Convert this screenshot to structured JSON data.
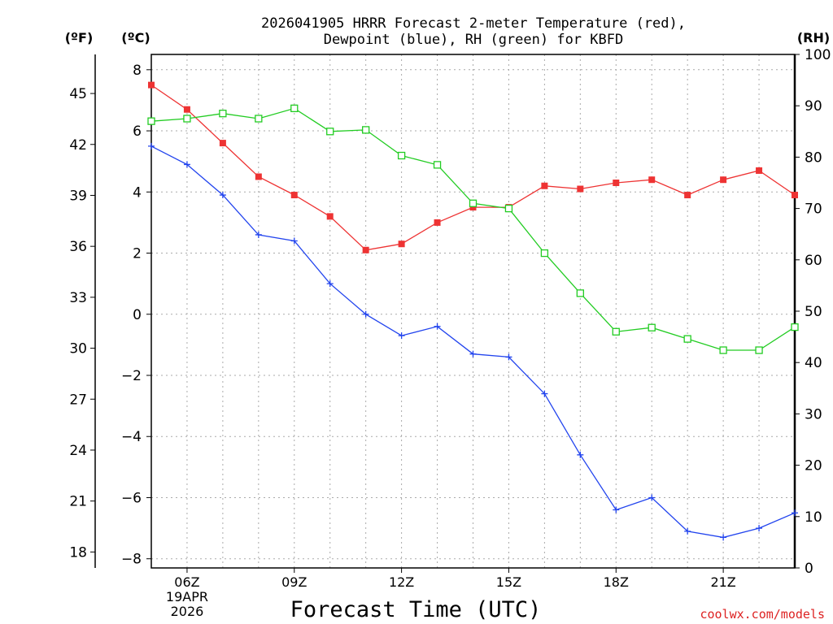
{
  "chart_data": {
    "type": "line",
    "title_line1": "2026041905 HRRR Forecast 2-meter Temperature (red),",
    "title_line2": "Dewpoint (blue), RH (green) for KBFD",
    "xlabel": "Forecast Time (UTC)",
    "credit": "coolwx.com/models",
    "left_outer_axis": {
      "unit_label": "(ºF)",
      "ticks": [
        18,
        21,
        24,
        27,
        30,
        33,
        36,
        39,
        42,
        45
      ]
    },
    "left_inner_axis": {
      "unit_label": "(ºC)",
      "ticks": [
        -8,
        -6,
        -4,
        -2,
        0,
        2,
        4,
        6,
        8
      ],
      "range": [
        -8.3,
        8.5
      ]
    },
    "right_axis": {
      "unit_label": "(RH)",
      "ticks": [
        0,
        10,
        20,
        30,
        40,
        50,
        60,
        70,
        80,
        90,
        100
      ],
      "range": [
        0,
        100
      ]
    },
    "x_hours": [
      5,
      6,
      7,
      8,
      9,
      10,
      11,
      12,
      13,
      14,
      15,
      16,
      17,
      18,
      19,
      20,
      21,
      22,
      23
    ],
    "x_range": [
      5,
      23
    ],
    "x_ticks": [
      {
        "hour": 6,
        "label": "06Z",
        "date_line1": "19APR",
        "date_line2": "2026"
      },
      {
        "hour": 9,
        "label": "09Z"
      },
      {
        "hour": 12,
        "label": "12Z"
      },
      {
        "hour": 15,
        "label": "15Z"
      },
      {
        "hour": 18,
        "label": "18Z"
      },
      {
        "hour": 21,
        "label": "21Z"
      }
    ],
    "grid": true,
    "series": [
      {
        "name": "Temperature",
        "axis": "celsius",
        "color": "#ee3333",
        "marker": "filled-square",
        "values": [
          7.5,
          6.7,
          5.6,
          4.5,
          3.9,
          3.2,
          2.1,
          2.3,
          3.0,
          3.5,
          3.5,
          4.2,
          4.1,
          4.3,
          4.4,
          3.9,
          4.4,
          4.7,
          3.9
        ]
      },
      {
        "name": "Dewpoint",
        "axis": "celsius",
        "color": "#2244ee",
        "marker": "plus",
        "values": [
          5.5,
          4.9,
          3.9,
          2.6,
          2.4,
          1.0,
          0.0,
          -0.7,
          -0.4,
          -1.3,
          -1.4,
          -2.6,
          -4.6,
          -6.4,
          -6.0,
          -7.1,
          -7.3,
          -7.0,
          -6.5
        ]
      },
      {
        "name": "RH",
        "axis": "rh",
        "color": "#22cc22",
        "marker": "open-square",
        "values": [
          87,
          87.5,
          88.5,
          87.5,
          89.5,
          85,
          85.3,
          80.3,
          78.5,
          71,
          70,
          61.3,
          53.5,
          46,
          46.8,
          44.6,
          42.4,
          42.4,
          46.9
        ]
      }
    ]
  }
}
